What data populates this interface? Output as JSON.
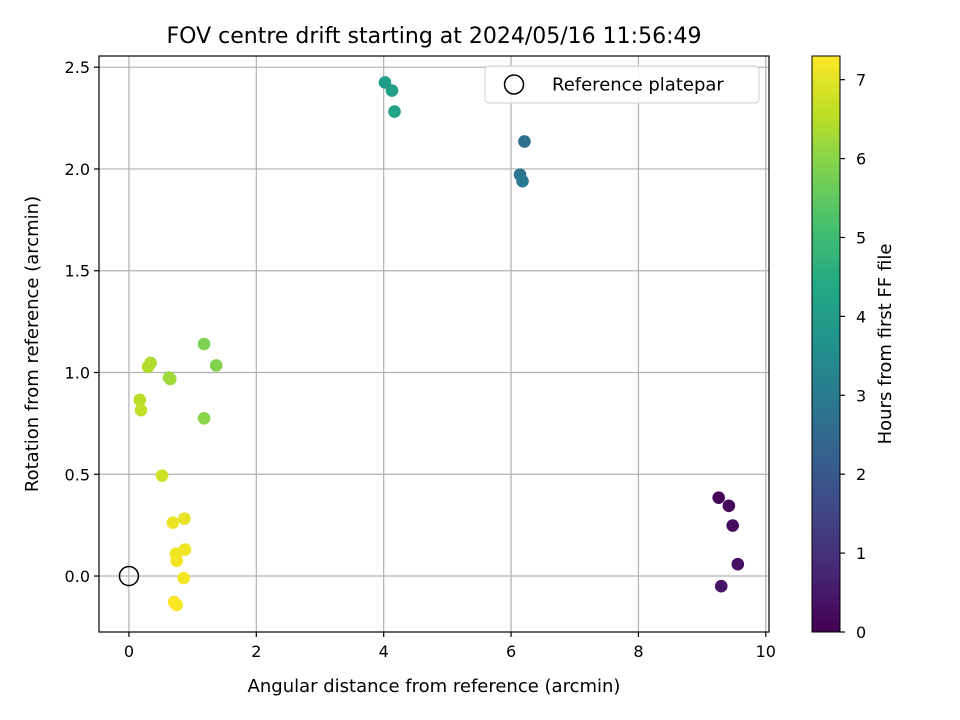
{
  "chart_data": {
    "type": "scatter",
    "title": "FOV centre drift starting at 2024/05/16 11:56:49",
    "xlabel": "Angular distance from reference (arcmin)",
    "ylabel": "Rotation from reference (arcmin)",
    "xlim": [
      -0.47,
      10.05
    ],
    "ylim": [
      -0.275,
      2.555
    ],
    "xticks": [
      0,
      2,
      4,
      6,
      8,
      10
    ],
    "yticks": [
      0.0,
      0.5,
      1.0,
      1.5,
      2.0,
      2.5
    ],
    "xtick_labels": [
      "0",
      "2",
      "4",
      "6",
      "8",
      "10"
    ],
    "ytick_labels": [
      "0.0",
      "0.5",
      "1.0",
      "1.5",
      "2.0",
      "2.5"
    ],
    "grid": true,
    "legend": {
      "position": "top-right",
      "label": "Reference platepar"
    },
    "reference_point": {
      "x": 0.0,
      "y": 0.0
    },
    "colorbar": {
      "label": "Hours from first FF file",
      "min": 0,
      "max": 7.3,
      "ticks": [
        0,
        1,
        2,
        3,
        4,
        5,
        6,
        7
      ],
      "tick_labels": [
        "0",
        "1",
        "2",
        "3",
        "4",
        "5",
        "6",
        "7"
      ],
      "colormap": "viridis"
    },
    "points": [
      {
        "x": 9.26,
        "y": 0.385,
        "hours": 0.05
      },
      {
        "x": 9.42,
        "y": 0.345,
        "hours": 0.15
      },
      {
        "x": 9.48,
        "y": 0.248,
        "hours": 0.25
      },
      {
        "x": 9.56,
        "y": 0.058,
        "hours": 0.3
      },
      {
        "x": 9.3,
        "y": -0.05,
        "hours": 0.4
      },
      {
        "x": 6.21,
        "y": 2.135,
        "hours": 2.7
      },
      {
        "x": 6.14,
        "y": 1.972,
        "hours": 2.85
      },
      {
        "x": 6.18,
        "y": 1.94,
        "hours": 2.95
      },
      {
        "x": 4.02,
        "y": 2.425,
        "hours": 4.0
      },
      {
        "x": 4.13,
        "y": 2.385,
        "hours": 4.1
      },
      {
        "x": 4.17,
        "y": 2.282,
        "hours": 4.2
      },
      {
        "x": 1.18,
        "y": 1.14,
        "hours": 5.85
      },
      {
        "x": 1.37,
        "y": 1.035,
        "hours": 5.9
      },
      {
        "x": 1.18,
        "y": 0.775,
        "hours": 6.0
      },
      {
        "x": 0.63,
        "y": 0.975,
        "hours": 6.2
      },
      {
        "x": 0.65,
        "y": 0.968,
        "hours": 6.25
      },
      {
        "x": 0.34,
        "y": 1.047,
        "hours": 6.4
      },
      {
        "x": 0.3,
        "y": 1.028,
        "hours": 6.45
      },
      {
        "x": 0.17,
        "y": 0.865,
        "hours": 6.55
      },
      {
        "x": 0.19,
        "y": 0.815,
        "hours": 6.6
      },
      {
        "x": 0.52,
        "y": 0.493,
        "hours": 6.75
      },
      {
        "x": 0.87,
        "y": 0.282,
        "hours": 7.05
      },
      {
        "x": 0.69,
        "y": 0.262,
        "hours": 7.1
      },
      {
        "x": 0.88,
        "y": 0.13,
        "hours": 7.15
      },
      {
        "x": 0.74,
        "y": 0.11,
        "hours": 7.15
      },
      {
        "x": 0.75,
        "y": 0.075,
        "hours": 7.2
      },
      {
        "x": 0.86,
        "y": -0.01,
        "hours": 7.2
      },
      {
        "x": 0.71,
        "y": -0.128,
        "hours": 7.25
      },
      {
        "x": 0.75,
        "y": -0.142,
        "hours": 7.25
      }
    ]
  }
}
